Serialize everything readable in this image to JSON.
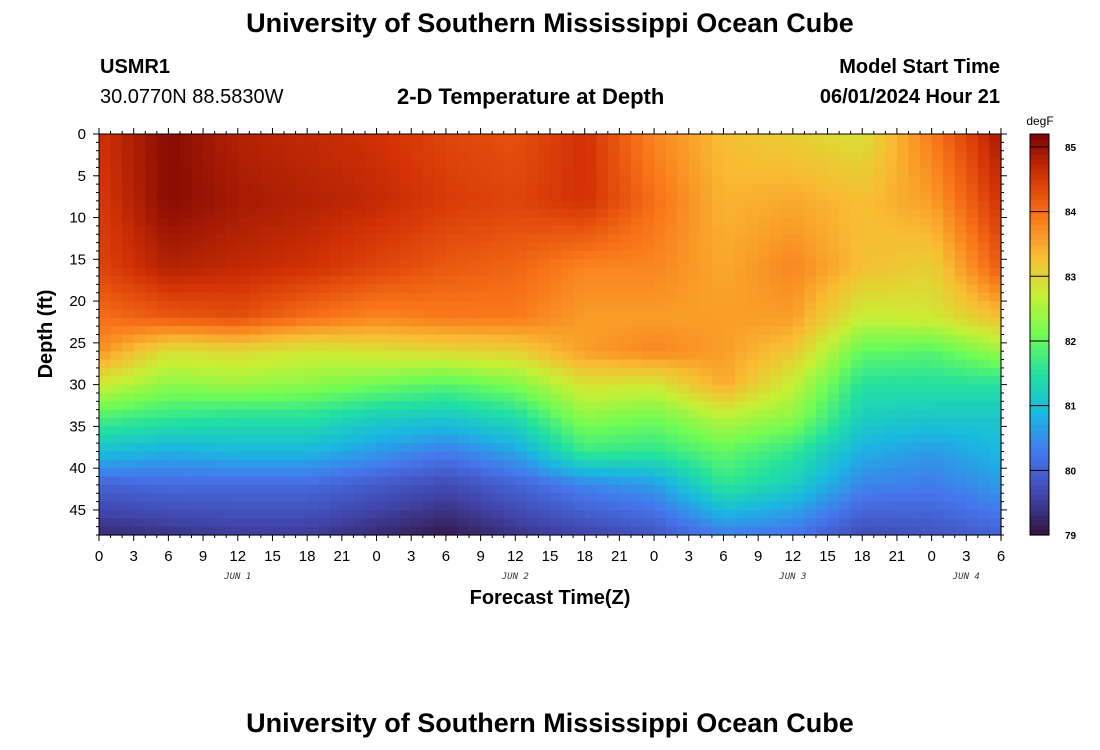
{
  "page": {
    "title_top": "University of Southern Mississippi Ocean Cube",
    "title_bottom": "University of Southern Mississippi Ocean Cube",
    "station_id": "USMR1",
    "coordinates": "30.0770N  88.5830W",
    "subtitle": "2-D Temperature at Depth",
    "model_start_label": "Model Start Time",
    "model_start_value": "06/01/2024 Hour 21"
  },
  "chart_data": {
    "type": "heatmap",
    "title": "2-D Temperature at Depth",
    "xlabel": "Forecast Time(Z)",
    "ylabel": "Depth (ft)",
    "x_tick_labels": [
      "0",
      "3",
      "6",
      "9",
      "12",
      "15",
      "18",
      "21",
      "0",
      "3",
      "6",
      "9",
      "12",
      "15",
      "18",
      "21",
      "0",
      "3",
      "6",
      "9",
      "12",
      "15",
      "18",
      "21",
      "0",
      "3",
      "6"
    ],
    "date_labels": [
      {
        "text": "JUN 1",
        "at_hour": 12
      },
      {
        "text": "JUN 2",
        "at_hour": 36
      },
      {
        "text": "JUN 3",
        "at_hour": 60
      },
      {
        "text": "JUN 4",
        "at_hour": 75
      }
    ],
    "x_range_hours": [
      0,
      78
    ],
    "y_ticks": [
      0,
      5,
      10,
      15,
      20,
      25,
      30,
      35,
      40,
      45
    ],
    "y_range_ft": [
      0,
      48
    ],
    "colorbar": {
      "unit": "degF",
      "ticks": [
        79,
        80,
        81,
        82,
        83,
        84,
        85
      ],
      "range": [
        79,
        85.2
      ]
    },
    "depths_ft": [
      0,
      8,
      16,
      22,
      26,
      30,
      34,
      38,
      42,
      48
    ],
    "times_hours": [
      0,
      6,
      12,
      18,
      24,
      30,
      36,
      42,
      48,
      54,
      60,
      66,
      72,
      78
    ],
    "temperature_degF": [
      [
        84.6,
        85.1,
        84.8,
        84.7,
        84.6,
        84.4,
        84.3,
        84.6,
        83.8,
        83.3,
        83.1,
        82.9,
        83.9,
        84.9
      ],
      [
        84.5,
        85.1,
        84.9,
        84.8,
        84.7,
        84.5,
        84.4,
        84.6,
        84.0,
        83.4,
        83.5,
        83.3,
        83.6,
        84.6
      ],
      [
        84.4,
        84.8,
        84.7,
        84.6,
        84.4,
        84.2,
        84.1,
        83.8,
        83.8,
        83.5,
        83.8,
        83.3,
        83.1,
        84.2
      ],
      [
        84.0,
        84.2,
        84.3,
        84.0,
        83.8,
        83.9,
        83.9,
        83.6,
        83.6,
        83.6,
        83.6,
        82.7,
        82.8,
        83.3
      ],
      [
        83.7,
        82.9,
        83.0,
        82.8,
        82.9,
        83.0,
        83.1,
        83.6,
        83.8,
        83.6,
        83.2,
        82.0,
        81.9,
        82.4
      ],
      [
        82.8,
        82.3,
        82.4,
        82.3,
        82.1,
        81.9,
        82.2,
        82.9,
        82.8,
        83.5,
        82.7,
        81.5,
        81.5,
        81.5
      ],
      [
        81.8,
        81.6,
        81.5,
        81.5,
        81.2,
        81.1,
        81.4,
        82.3,
        82.1,
        82.6,
        82.3,
        81.2,
        81.1,
        81.1
      ],
      [
        81.0,
        80.8,
        80.9,
        80.9,
        80.6,
        80.3,
        80.7,
        81.7,
        81.6,
        82.0,
        81.6,
        80.8,
        80.6,
        80.9
      ],
      [
        80.0,
        80.1,
        80.1,
        80.1,
        79.9,
        79.7,
        80.0,
        80.4,
        80.6,
        81.6,
        81.2,
        80.4,
        80.3,
        80.6
      ],
      [
        79.3,
        79.4,
        79.5,
        79.5,
        79.3,
        79.1,
        79.4,
        79.6,
        79.8,
        80.3,
        80.2,
        79.7,
        79.8,
        80.0
      ]
    ]
  }
}
